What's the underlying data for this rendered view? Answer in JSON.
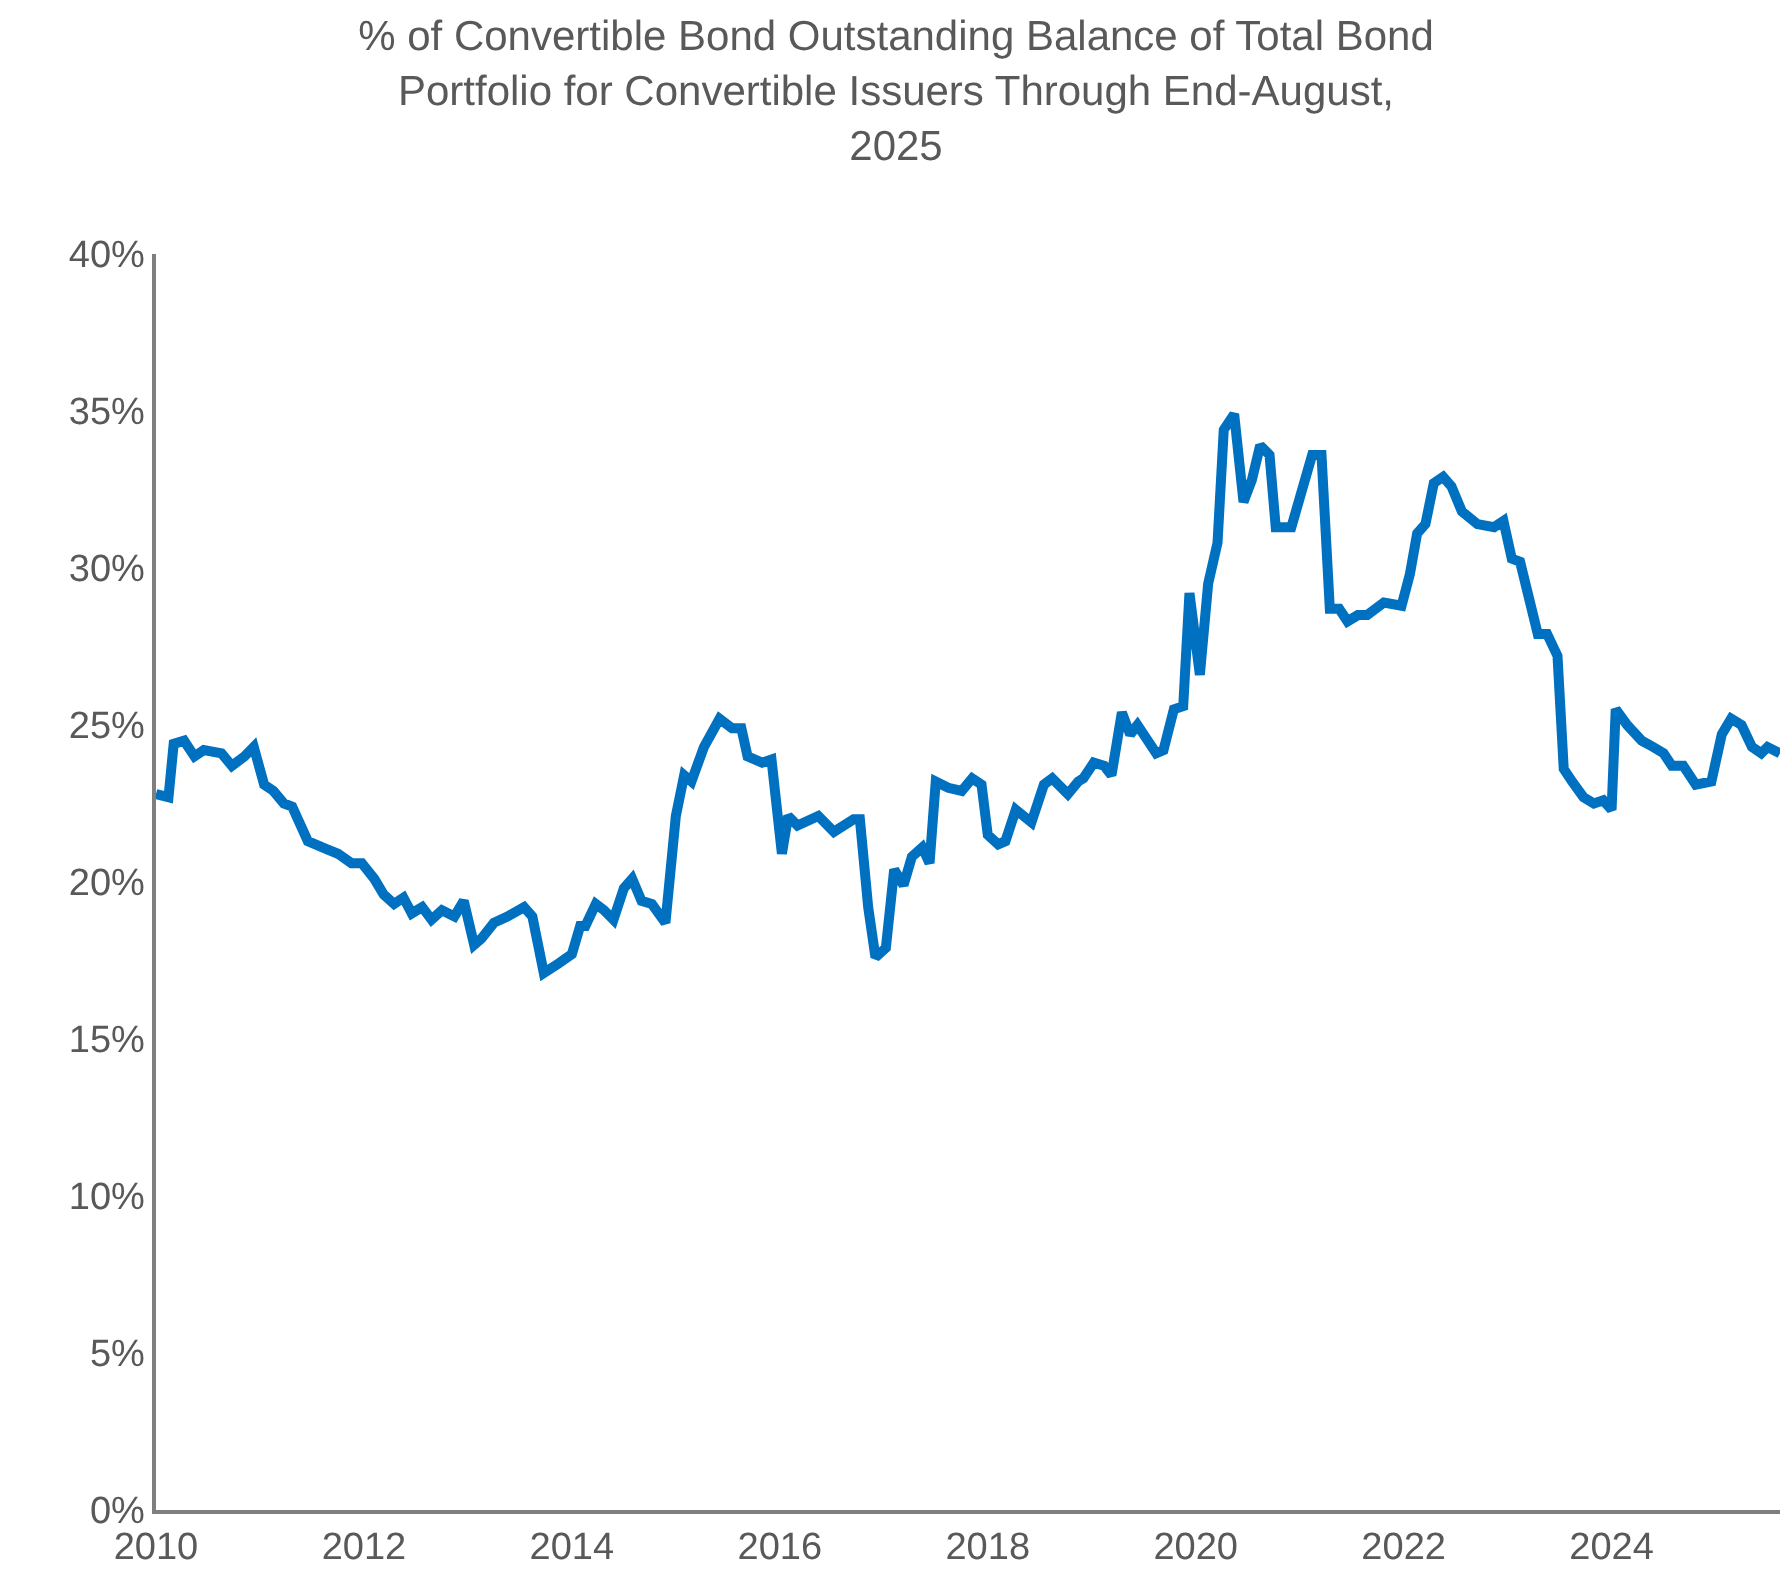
{
  "chart_data": {
    "type": "line",
    "title": "% of Convertible Bond Outstanding Balance of Total Bond Portfolio for Convertible Issuers Through End-August, 2025",
    "xlim": [
      2010,
      2025.62
    ],
    "xticks": [
      2010,
      2012,
      2014,
      2016,
      2018,
      2020,
      2022,
      2024
    ],
    "ylim": [
      0,
      40
    ],
    "yticks": [
      {
        "value": 0,
        "label": "0%"
      },
      {
        "value": 5,
        "label": "5%"
      },
      {
        "value": 10,
        "label": "10%"
      },
      {
        "value": 15,
        "label": "15%"
      },
      {
        "value": 20,
        "label": "20%"
      },
      {
        "value": 25,
        "label": "25%"
      },
      {
        "value": 30,
        "label": "30%"
      },
      {
        "value": 35,
        "label": "35%"
      },
      {
        "value": 40,
        "label": "40%"
      }
    ],
    "line_style": "solid",
    "x": [
      2010.0,
      2010.12,
      2010.17,
      2010.27,
      2010.37,
      2010.46,
      2010.63,
      2010.73,
      2010.85,
      2010.94,
      2011.04,
      2011.13,
      2011.23,
      2011.31,
      2011.46,
      2011.6,
      2011.75,
      2011.88,
      2011.98,
      2012.1,
      2012.19,
      2012.29,
      2012.38,
      2012.46,
      2012.56,
      2012.65,
      2012.75,
      2012.87,
      2012.96,
      2013.06,
      2013.13,
      2013.25,
      2013.38,
      2013.54,
      2013.62,
      2013.73,
      2013.87,
      2014.0,
      2014.08,
      2014.13,
      2014.23,
      2014.31,
      2014.4,
      2014.5,
      2014.58,
      2014.67,
      2014.77,
      2014.9,
      2015.0,
      2015.08,
      2015.15,
      2015.27,
      2015.42,
      2015.54,
      2015.63,
      2015.69,
      2015.83,
      2015.92,
      2016.02,
      2016.08,
      2016.17,
      2016.37,
      2016.52,
      2016.71,
      2016.77,
      2016.85,
      2016.92,
      2017.02,
      2017.1,
      2017.19,
      2017.27,
      2017.37,
      2017.44,
      2017.5,
      2017.62,
      2017.75,
      2017.85,
      2017.94,
      2018.0,
      2018.1,
      2018.17,
      2018.27,
      2018.42,
      2018.54,
      2018.62,
      2018.77,
      2018.87,
      2018.92,
      2019.02,
      2019.12,
      2019.19,
      2019.29,
      2019.37,
      2019.44,
      2019.62,
      2019.69,
      2019.79,
      2019.88,
      2019.94,
      2020.04,
      2020.12,
      2020.21,
      2020.27,
      2020.37,
      2020.46,
      2020.54,
      2020.62,
      2020.71,
      2020.77,
      2020.92,
      2021.12,
      2021.21,
      2021.29,
      2021.38,
      2021.46,
      2021.56,
      2021.65,
      2021.81,
      2021.98,
      2022.06,
      2022.13,
      2022.21,
      2022.29,
      2022.38,
      2022.46,
      2022.56,
      2022.71,
      2022.87,
      2022.96,
      2023.04,
      2023.12,
      2023.29,
      2023.38,
      2023.48,
      2023.54,
      2023.62,
      2023.73,
      2023.83,
      2023.92,
      2024.0,
      2024.04,
      2024.15,
      2024.29,
      2024.4,
      2024.5,
      2024.58,
      2024.69,
      2024.81,
      2024.96,
      2025.06,
      2025.15,
      2025.25,
      2025.35,
      2025.44,
      2025.5,
      2025.62
    ],
    "series": [
      {
        "color": "#0070c0",
        "values": [
          22.8,
          22.7,
          24.4,
          24.5,
          24.0,
          24.2,
          24.1,
          23.7,
          24.0,
          24.3,
          23.1,
          22.9,
          22.5,
          22.4,
          21.3,
          21.1,
          20.9,
          20.6,
          20.6,
          20.1,
          19.6,
          19.3,
          19.5,
          19.0,
          19.2,
          18.8,
          19.1,
          18.9,
          19.4,
          18.0,
          18.2,
          18.7,
          18.9,
          19.2,
          18.9,
          17.1,
          17.4,
          17.7,
          18.6,
          18.6,
          19.3,
          19.1,
          18.8,
          19.8,
          20.1,
          19.4,
          19.3,
          18.7,
          22.1,
          23.4,
          23.2,
          24.3,
          25.2,
          24.9,
          24.9,
          24.0,
          23.8,
          23.9,
          20.9,
          22.1,
          21.8,
          22.1,
          21.6,
          22.0,
          22.0,
          19.2,
          17.6,
          17.9,
          20.4,
          19.9,
          20.8,
          21.1,
          20.6,
          23.2,
          23.0,
          22.9,
          23.3,
          23.1,
          21.5,
          21.2,
          21.3,
          22.3,
          21.9,
          23.1,
          23.3,
          22.8,
          23.2,
          23.3,
          23.8,
          23.7,
          23.4,
          25.4,
          24.7,
          25.0,
          24.1,
          24.2,
          25.5,
          25.6,
          29.2,
          26.6,
          29.5,
          30.8,
          34.4,
          34.9,
          32.1,
          32.8,
          33.9,
          33.6,
          31.3,
          31.3,
          33.6,
          33.6,
          28.7,
          28.7,
          28.3,
          28.5,
          28.5,
          28.9,
          28.8,
          29.8,
          31.1,
          31.4,
          32.7,
          32.9,
          32.6,
          31.8,
          31.4,
          31.3,
          31.5,
          30.3,
          30.2,
          27.9,
          27.9,
          27.2,
          23.6,
          23.2,
          22.7,
          22.5,
          22.6,
          22.3,
          25.5,
          25.0,
          24.5,
          24.3,
          24.1,
          23.7,
          23.7,
          23.1,
          23.2,
          24.7,
          25.2,
          25.0,
          24.3,
          24.1,
          24.3,
          24.1
        ]
      }
    ]
  }
}
